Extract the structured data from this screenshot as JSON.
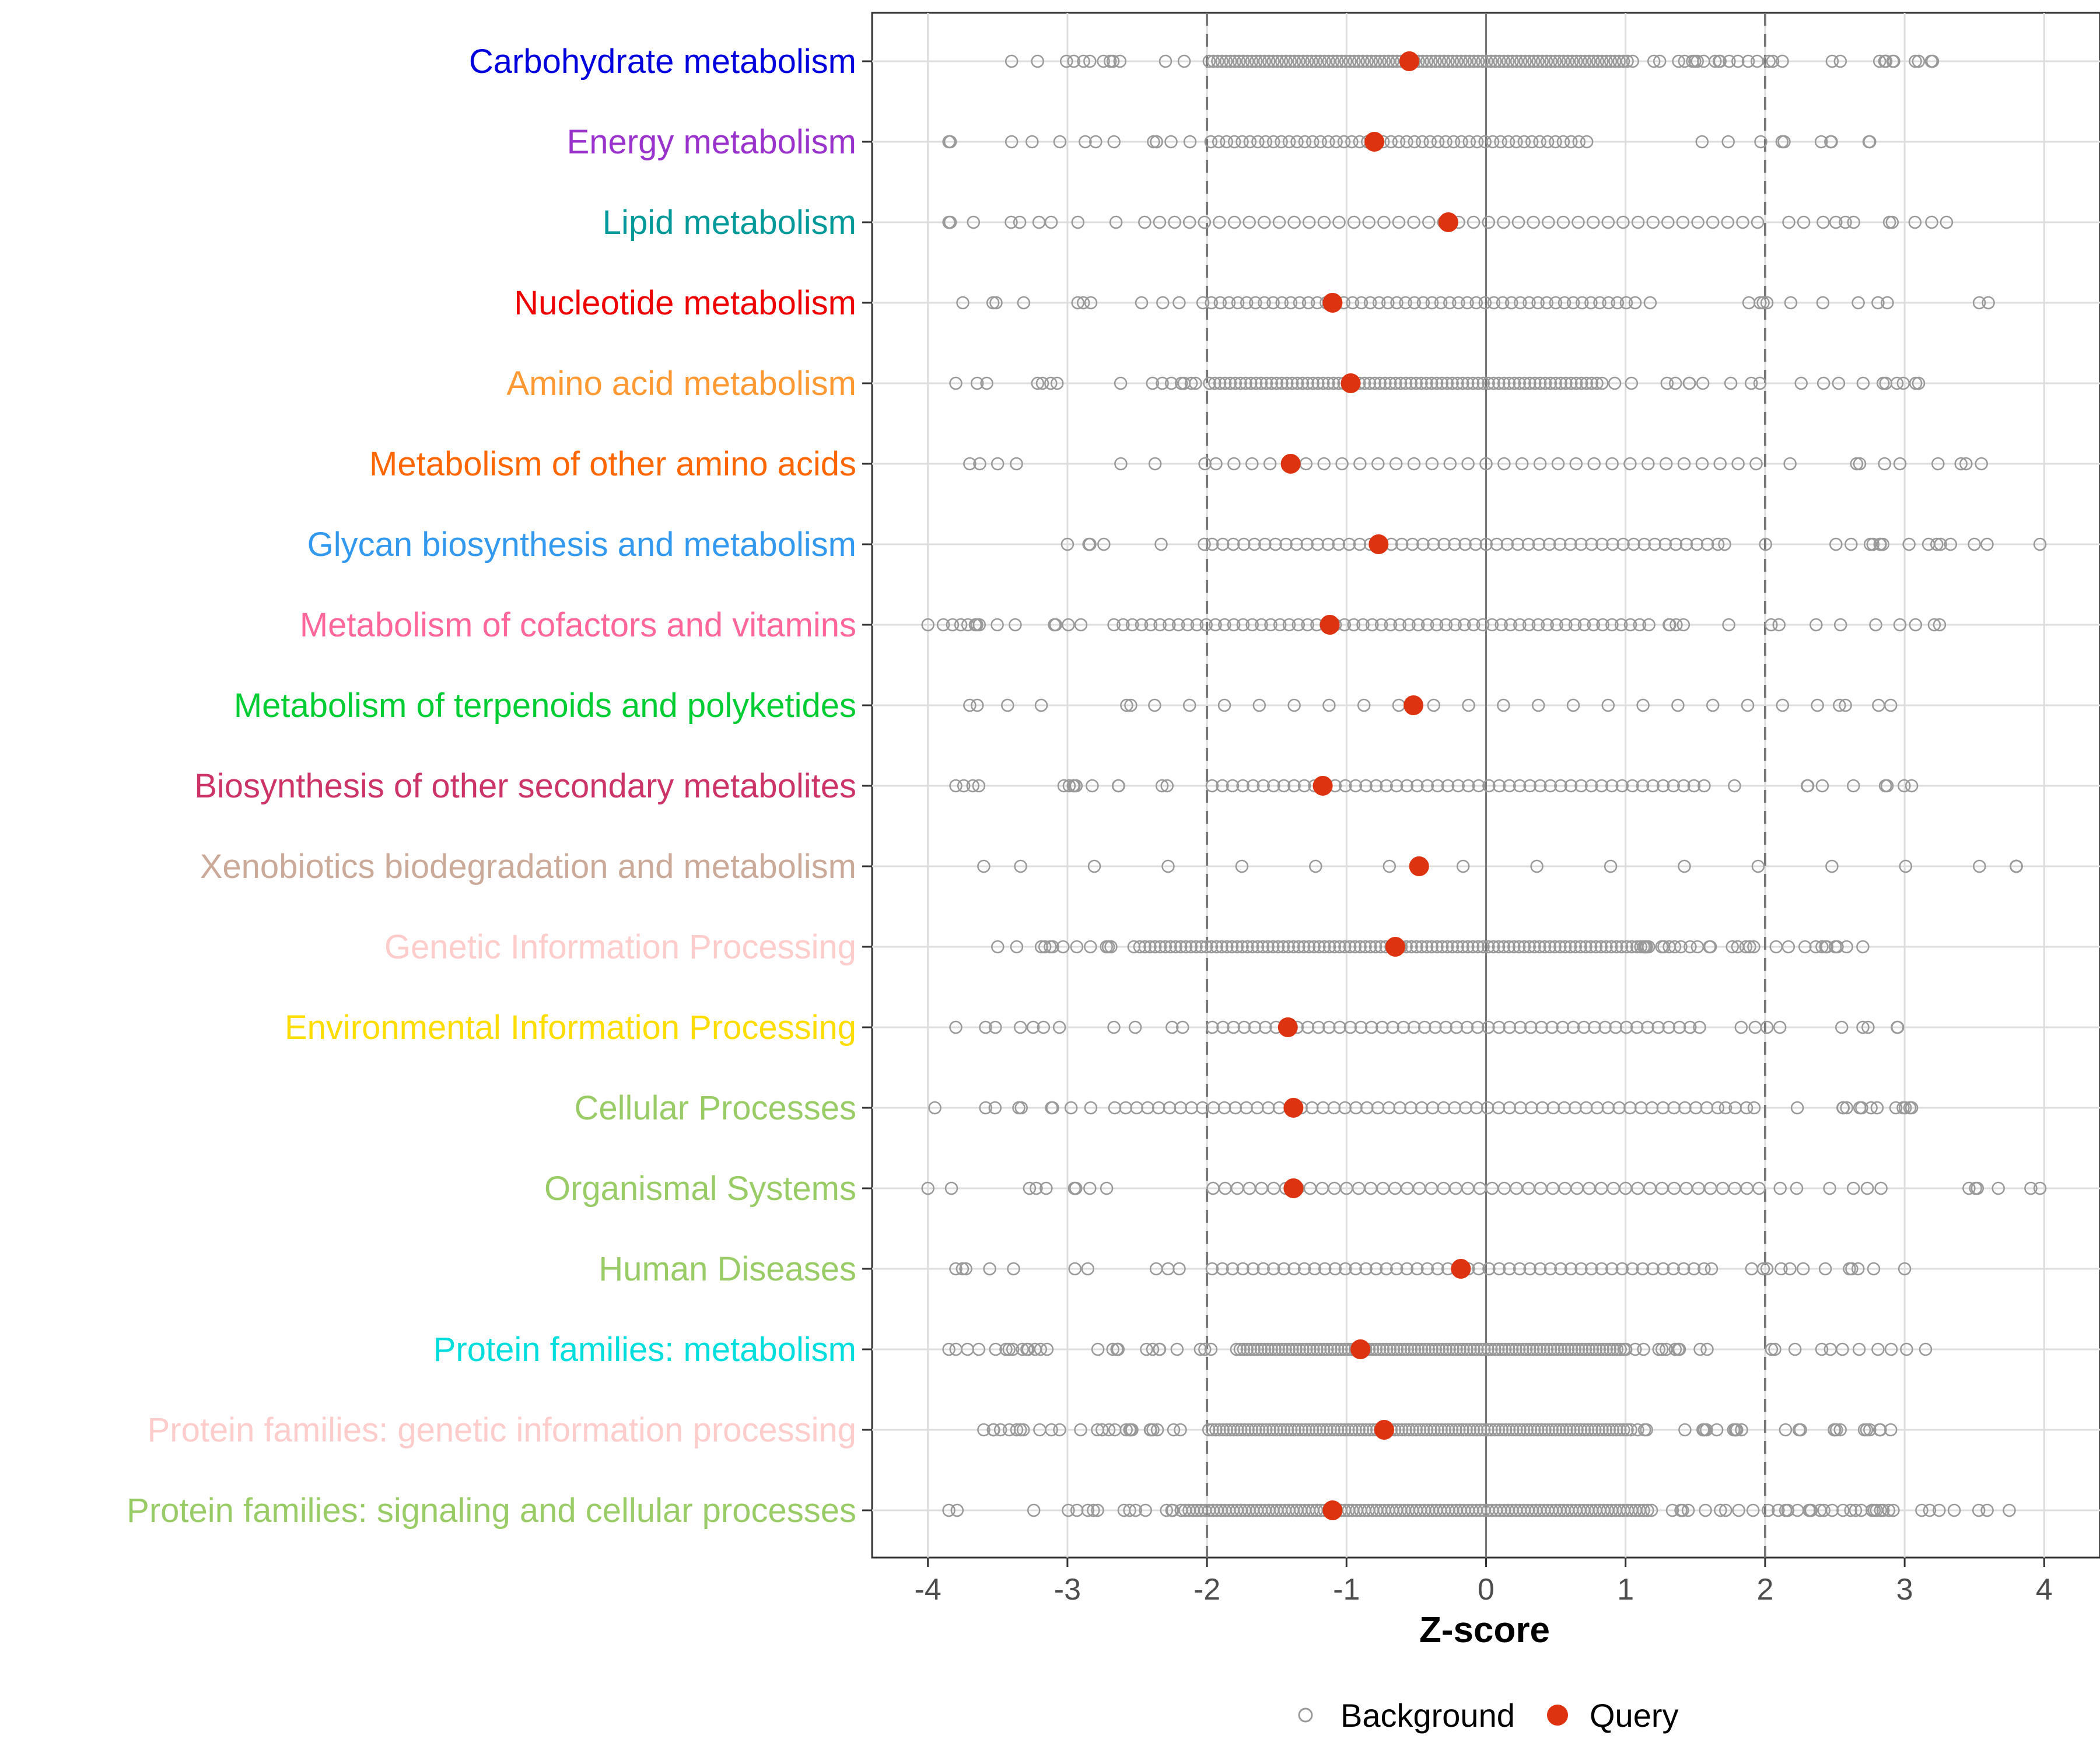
{
  "chart_data": {
    "type": "scatter",
    "title": "",
    "xlabel": "Z-score",
    "ylabel": "",
    "xlim": [
      -4.4,
      4.4
    ],
    "x_ticks": [
      -4,
      -3,
      -2,
      -1,
      0,
      1,
      2,
      3,
      4
    ],
    "x_tick_labels": [
      "-4",
      "-3",
      "-2",
      "-1",
      "0",
      "1",
      "2",
      "3",
      "4"
    ],
    "reference_lines": {
      "dashed": [
        -2,
        2
      ],
      "solid": [
        0
      ]
    },
    "grid": true,
    "legend": {
      "position": "bottom",
      "entries": [
        {
          "name": "Background",
          "marker": "open-circle",
          "color": "#999999"
        },
        {
          "name": "Query",
          "marker": "filled-circle",
          "color": "#DD3311"
        }
      ]
    },
    "categories": [
      {
        "label": "Carbohydrate metabolism",
        "color": "#0000DD",
        "query": -0.55,
        "bg_range": [
          -3.4,
          3.2
        ],
        "bg_dense": [
          -2.0,
          1.0
        ],
        "bg_count": 140
      },
      {
        "label": "Energy metabolism",
        "color": "#9933CC",
        "query": -0.8,
        "bg_range": [
          -3.85,
          2.75
        ],
        "bg_dense": [
          -2.0,
          0.75
        ],
        "bg_count": 70
      },
      {
        "label": "Lipid metabolism",
        "color": "#009999",
        "query": -0.27,
        "bg_range": [
          -3.85,
          3.3
        ],
        "bg_dense": [
          -2.5,
          2.0
        ],
        "bg_count": 60
      },
      {
        "label": "Nucleotide metabolism",
        "color": "#EE0000",
        "query": -1.1,
        "bg_range": [
          -3.75,
          3.6
        ],
        "bg_dense": [
          -2.0,
          1.1
        ],
        "bg_count": 70
      },
      {
        "label": "Amino acid metabolism",
        "color": "#FF9933",
        "query": -0.97,
        "bg_range": [
          -3.8,
          3.1
        ],
        "bg_dense": [
          -2.0,
          0.85
        ],
        "bg_count": 110
      },
      {
        "label": "Metabolism of other amino acids",
        "color": "#FF6600",
        "query": -1.4,
        "bg_range": [
          -3.7,
          3.55
        ],
        "bg_dense": [
          -2.0,
          2.0
        ],
        "bg_count": 45
      },
      {
        "label": "Glycan biosynthesis and metabolism",
        "color": "#3399EE",
        "query": -0.77,
        "bg_range": [
          -3.0,
          3.97
        ],
        "bg_dense": [
          -2.0,
          1.7
        ],
        "bg_count": 70
      },
      {
        "label": "Metabolism of cofactors and vitamins",
        "color": "#FF6699",
        "query": -1.12,
        "bg_range": [
          -4.0,
          3.25
        ],
        "bg_dense": [
          -2.7,
          1.2
        ],
        "bg_count": 85
      },
      {
        "label": "Metabolism of terpenoids and polyketides",
        "color": "#00CC33",
        "query": -0.52,
        "bg_range": [
          -3.7,
          2.9
        ],
        "bg_dense": [
          -2.5,
          2.5
        ],
        "bg_count": 28
      },
      {
        "label": "Biosynthesis of other secondary metabolites",
        "color": "#CC3366",
        "query": -1.17,
        "bg_range": [
          -3.8,
          3.05
        ],
        "bg_dense": [
          -2.0,
          1.6
        ],
        "bg_count": 70
      },
      {
        "label": "Xenobiotics biodegradation and metabolism",
        "color": "#CCAA99",
        "query": -0.48,
        "bg_range": [
          -3.6,
          3.8
        ],
        "bg_dense": [
          -3.6,
          3.8
        ],
        "bg_count": 20
      },
      {
        "label": "Genetic Information Processing",
        "color": "#FFCCCC",
        "query": -0.65,
        "bg_range": [
          -3.5,
          2.7
        ],
        "bg_dense": [
          -2.5,
          1.1
        ],
        "bg_count": 140
      },
      {
        "label": "Environmental Information Processing",
        "color": "#FFDD00",
        "query": -1.42,
        "bg_range": [
          -3.8,
          2.95
        ],
        "bg_dense": [
          -2.0,
          1.5
        ],
        "bg_count": 65
      },
      {
        "label": "Cellular Processes",
        "color": "#99CC66",
        "query": -1.38,
        "bg_range": [
          -3.95,
          3.05
        ],
        "bg_dense": [
          -2.7,
          1.7
        ],
        "bg_count": 80
      },
      {
        "label": "Organismal Systems",
        "color": "#99CC66",
        "query": -1.38,
        "bg_range": [
          -4.0,
          3.97
        ],
        "bg_dense": [
          -2.0,
          2.0
        ],
        "bg_count": 65
      },
      {
        "label": "Human Diseases",
        "color": "#99CC66",
        "query": -0.18,
        "bg_range": [
          -3.8,
          3.0
        ],
        "bg_dense": [
          -2.0,
          1.6
        ],
        "bg_count": 70
      },
      {
        "label": "Protein families: metabolism",
        "color": "#00DDDD",
        "query": -0.9,
        "bg_range": [
          -3.85,
          3.15
        ],
        "bg_dense": [
          -1.8,
          1.0
        ],
        "bg_count": 160
      },
      {
        "label": "Protein families: genetic information processing",
        "color": "#FFCCCC",
        "query": -0.73,
        "bg_range": [
          -3.6,
          2.9
        ],
        "bg_dense": [
          -2.0,
          1.05
        ],
        "bg_count": 170
      },
      {
        "label": "Protein families: signaling and cellular processes",
        "color": "#99CC66",
        "query": -1.1,
        "bg_range": [
          -3.85,
          3.75
        ],
        "bg_dense": [
          -2.2,
          1.2
        ],
        "bg_count": 170
      }
    ]
  }
}
